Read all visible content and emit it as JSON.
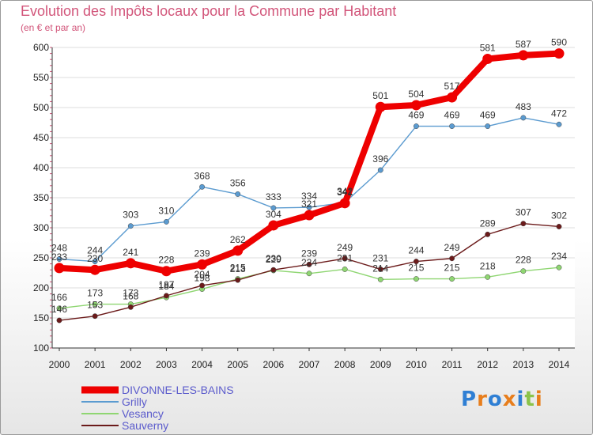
{
  "chart_data": {
    "type": "line",
    "title": "Evolution des Impôts locaux pour la Commune par Habitant",
    "subtitle": "(en € et par an)",
    "categories": [
      "2000",
      "2001",
      "2002",
      "2003",
      "2004",
      "2005",
      "2006",
      "2007",
      "2008",
      "2009",
      "2010",
      "2011",
      "2012",
      "2013",
      "2014"
    ],
    "ylim": [
      100,
      600
    ],
    "yticks": [
      100,
      150,
      200,
      250,
      300,
      350,
      400,
      450,
      500,
      550,
      600
    ],
    "series": [
      {
        "name": "DIVONNE-LES-BAINS",
        "color": "#ee0000",
        "values": [
          233,
          230,
          241,
          228,
          239,
          262,
          304,
          321,
          341,
          501,
          504,
          517,
          581,
          587,
          590
        ]
      },
      {
        "name": "Grilly",
        "color": "#5b9bd0",
        "values": [
          248,
          244,
          303,
          310,
          368,
          356,
          333,
          334,
          342,
          396,
          469,
          469,
          469,
          483,
          472
        ]
      },
      {
        "name": "Vesancy",
        "color": "#8fd672",
        "values": [
          166,
          173,
          173,
          184,
          198,
          215,
          229,
          224,
          231,
          214,
          215,
          215,
          218,
          228,
          234
        ]
      },
      {
        "name": "Sauverny",
        "color": "#6b1a1a",
        "values": [
          146,
          153,
          168,
          187,
          204,
          213,
          230,
          239,
          249,
          231,
          244,
          249,
          289,
          307,
          302
        ]
      }
    ]
  },
  "logo": {
    "text": "Proxiti",
    "letters": [
      "P",
      "r",
      "o",
      "x",
      "i",
      "t",
      "i"
    ],
    "colors": [
      "#2f7fd4",
      "#e87e1c",
      "#2f7fd4",
      "#e87e1c",
      "#2f7fd4",
      "#8bc34a",
      "#e87e1c"
    ]
  }
}
